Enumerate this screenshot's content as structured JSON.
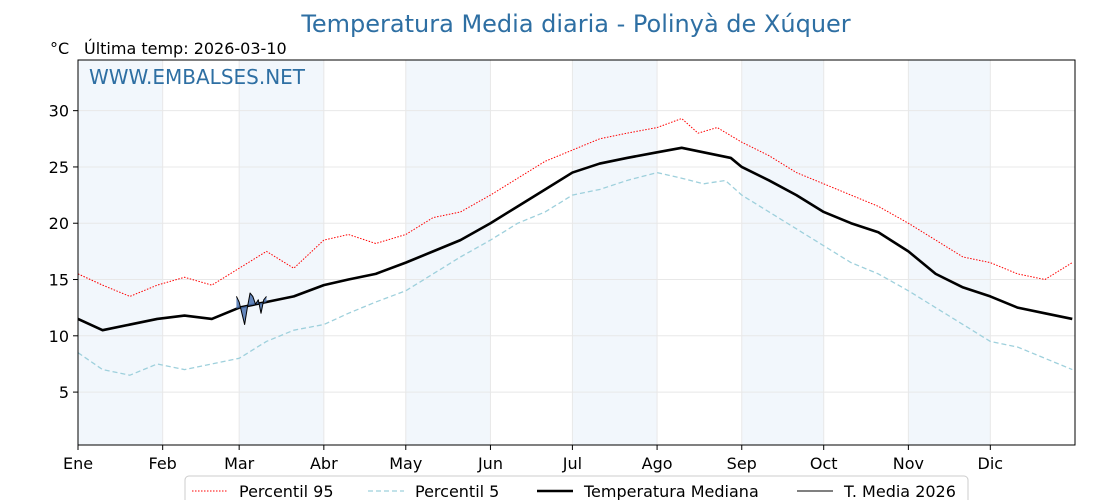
{
  "chart_data": {
    "type": "line",
    "title": "Temperatura Media diaria - Polinyà de Xúquer",
    "unit": "°C",
    "last_temp_label": "Última temp: 2026-03-10",
    "watermark": "WWW.EMBALSES.NET",
    "xlabel": "",
    "ylabel": "",
    "x_range_days": [
      1,
      365
    ],
    "ylim": [
      0.3,
      34.5
    ],
    "y_ticks": [
      5,
      10,
      15,
      20,
      25,
      30
    ],
    "grid": true,
    "months": [
      "Ene",
      "Feb",
      "Mar",
      "Abr",
      "May",
      "Jun",
      "Jul",
      "Ago",
      "Sep",
      "Oct",
      "Nov",
      "Dic"
    ],
    "month_start_days": [
      1,
      32,
      60,
      91,
      121,
      152,
      182,
      213,
      244,
      274,
      305,
      335
    ],
    "shaded_months": [
      "Ene",
      "Mar",
      "May",
      "Jul",
      "Sep",
      "Nov"
    ],
    "legend_position": "bottom-center",
    "series": [
      {
        "name": "Percentil 95",
        "color": "#ff0000",
        "style": "dotted",
        "points": [
          [
            1,
            15.5
          ],
          [
            10,
            14.5
          ],
          [
            20,
            13.5
          ],
          [
            30,
            14.5
          ],
          [
            40,
            15.2
          ],
          [
            50,
            14.5
          ],
          [
            60,
            16.0
          ],
          [
            70,
            17.5
          ],
          [
            80,
            16.0
          ],
          [
            91,
            18.5
          ],
          [
            100,
            19.0
          ],
          [
            110,
            18.2
          ],
          [
            121,
            19.0
          ],
          [
            131,
            20.5
          ],
          [
            141,
            21.0
          ],
          [
            152,
            22.5
          ],
          [
            162,
            24.0
          ],
          [
            172,
            25.5
          ],
          [
            182,
            26.5
          ],
          [
            192,
            27.5
          ],
          [
            202,
            28.0
          ],
          [
            213,
            28.5
          ],
          [
            222,
            29.3
          ],
          [
            228,
            28.0
          ],
          [
            235,
            28.5
          ],
          [
            244,
            27.2
          ],
          [
            254,
            26.0
          ],
          [
            264,
            24.5
          ],
          [
            274,
            23.5
          ],
          [
            284,
            22.5
          ],
          [
            294,
            21.5
          ],
          [
            305,
            20.0
          ],
          [
            315,
            18.5
          ],
          [
            325,
            17.0
          ],
          [
            335,
            16.5
          ],
          [
            345,
            15.5
          ],
          [
            355,
            15.0
          ],
          [
            365,
            16.5
          ]
        ]
      },
      {
        "name": "Percentil 5",
        "color": "#9ed0dc",
        "style": "dashed",
        "points": [
          [
            1,
            8.5
          ],
          [
            10,
            7.0
          ],
          [
            20,
            6.5
          ],
          [
            30,
            7.5
          ],
          [
            40,
            7.0
          ],
          [
            50,
            7.5
          ],
          [
            60,
            8.0
          ],
          [
            70,
            9.5
          ],
          [
            80,
            10.5
          ],
          [
            91,
            11.0
          ],
          [
            100,
            12.0
          ],
          [
            110,
            13.0
          ],
          [
            121,
            14.0
          ],
          [
            131,
            15.5
          ],
          [
            141,
            17.0
          ],
          [
            152,
            18.5
          ],
          [
            162,
            20.0
          ],
          [
            172,
            21.0
          ],
          [
            182,
            22.5
          ],
          [
            192,
            23.0
          ],
          [
            202,
            23.8
          ],
          [
            213,
            24.5
          ],
          [
            222,
            24.0
          ],
          [
            230,
            23.5
          ],
          [
            238,
            23.8
          ],
          [
            244,
            22.5
          ],
          [
            254,
            21.0
          ],
          [
            264,
            19.5
          ],
          [
            274,
            18.0
          ],
          [
            284,
            16.5
          ],
          [
            294,
            15.5
          ],
          [
            305,
            14.0
          ],
          [
            315,
            12.5
          ],
          [
            325,
            11.0
          ],
          [
            335,
            9.5
          ],
          [
            345,
            9.0
          ],
          [
            355,
            8.0
          ],
          [
            365,
            7.0
          ]
        ]
      },
      {
        "name": "Temperatura Mediana",
        "color": "#000000",
        "style": "solid-thick",
        "points": [
          [
            1,
            11.5
          ],
          [
            10,
            10.5
          ],
          [
            20,
            11.0
          ],
          [
            30,
            11.5
          ],
          [
            40,
            11.8
          ],
          [
            50,
            11.5
          ],
          [
            60,
            12.5
          ],
          [
            70,
            13.0
          ],
          [
            80,
            13.5
          ],
          [
            91,
            14.5
          ],
          [
            100,
            15.0
          ],
          [
            110,
            15.5
          ],
          [
            121,
            16.5
          ],
          [
            131,
            17.5
          ],
          [
            141,
            18.5
          ],
          [
            152,
            20.0
          ],
          [
            162,
            21.5
          ],
          [
            172,
            23.0
          ],
          [
            182,
            24.5
          ],
          [
            192,
            25.3
          ],
          [
            202,
            25.8
          ],
          [
            213,
            26.3
          ],
          [
            222,
            26.7
          ],
          [
            232,
            26.2
          ],
          [
            240,
            25.8
          ],
          [
            244,
            25.0
          ],
          [
            254,
            23.8
          ],
          [
            264,
            22.5
          ],
          [
            274,
            21.0
          ],
          [
            284,
            20.0
          ],
          [
            294,
            19.2
          ],
          [
            305,
            17.5
          ],
          [
            315,
            15.5
          ],
          [
            325,
            14.3
          ],
          [
            335,
            13.5
          ],
          [
            345,
            12.5
          ],
          [
            355,
            12.0
          ],
          [
            365,
            11.5
          ]
        ]
      },
      {
        "name": "T. Media 2026",
        "color": "#000000",
        "style": "solid-thin",
        "fill_color": "#4a72b0",
        "points": [
          [
            59,
            13.5
          ],
          [
            60,
            13.0
          ],
          [
            61,
            12.0
          ],
          [
            62,
            11.0
          ],
          [
            63,
            12.5
          ],
          [
            64,
            13.8
          ],
          [
            65,
            13.5
          ],
          [
            66,
            12.8
          ],
          [
            67,
            13.2
          ],
          [
            68,
            12.0
          ],
          [
            69,
            13.2
          ],
          [
            70,
            13.5
          ]
        ]
      }
    ]
  }
}
